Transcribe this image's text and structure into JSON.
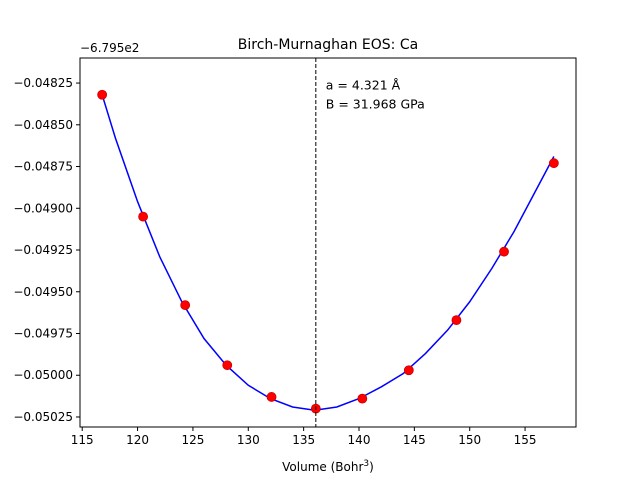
{
  "chart_data": {
    "type": "scatter",
    "title": "Birch-Murnaghan EOS: Ca",
    "xlabel": "Volume (Bohr",
    "xlabel_sup": "3",
    "xlabel_close": ")",
    "ylabel": "",
    "y_offset_label": "−6.795e2",
    "xlim": [
      114.8,
      159.6
    ],
    "ylim": [
      -0.05031,
      -0.0481
    ],
    "x_ticks": [
      115,
      120,
      125,
      130,
      135,
      140,
      145,
      150,
      155
    ],
    "x_tick_labels": [
      "115",
      "120",
      "125",
      "130",
      "135",
      "140",
      "145",
      "150",
      "155"
    ],
    "y_ticks": [
      -0.04825,
      -0.0485,
      -0.04875,
      -0.049,
      -0.04925,
      -0.0495,
      -0.04975,
      -0.05,
      -0.05025
    ],
    "y_tick_labels": [
      "−0.04825",
      "−0.04850",
      "−0.04875",
      "−0.04900",
      "−0.04925",
      "−0.04950",
      "−0.04975",
      "−0.05000",
      "−0.05025"
    ],
    "grid": false,
    "series": [
      {
        "kind": "points",
        "color": "#ff0000",
        "edge_color": "#cc0000",
        "x": [
          116.8,
          120.5,
          124.3,
          128.1,
          132.1,
          136.1,
          140.3,
          144.5,
          148.8,
          153.1,
          157.6
        ],
        "y": [
          -0.04832,
          -0.04905,
          -0.04958,
          -0.04994,
          -0.05013,
          -0.0502,
          -0.05014,
          -0.04997,
          -0.04967,
          -0.04926,
          -0.04873
        ]
      },
      {
        "kind": "fit",
        "color": "#0000ff",
        "x": [
          116.8,
          118.0,
          120.0,
          122.0,
          124.0,
          126.0,
          128.0,
          130.0,
          132.0,
          134.0,
          136.0,
          137.0,
          138.0,
          140.0,
          142.0,
          144.0,
          146.0,
          148.0,
          150.0,
          152.0,
          154.0,
          156.0,
          157.6
        ],
        "y": [
          -0.04832,
          -0.04858,
          -0.04896,
          -0.04929,
          -0.04956,
          -0.04978,
          -0.04994,
          -0.05006,
          -0.05014,
          -0.05019,
          -0.05021,
          -0.0502,
          -0.05019,
          -0.05014,
          -0.05007,
          -0.04999,
          -0.04987,
          -0.04973,
          -0.04956,
          -0.04936,
          -0.04914,
          -0.04889,
          -0.04869
        ]
      }
    ],
    "vline": {
      "x": 136.1,
      "color": "#000000",
      "style": "dashed"
    },
    "annotation": {
      "lines": [
        "a = 4.321 Å",
        "B = 31.968 GPa"
      ],
      "anchor_x": 137.0,
      "anchor_y": -0.04829
    }
  }
}
